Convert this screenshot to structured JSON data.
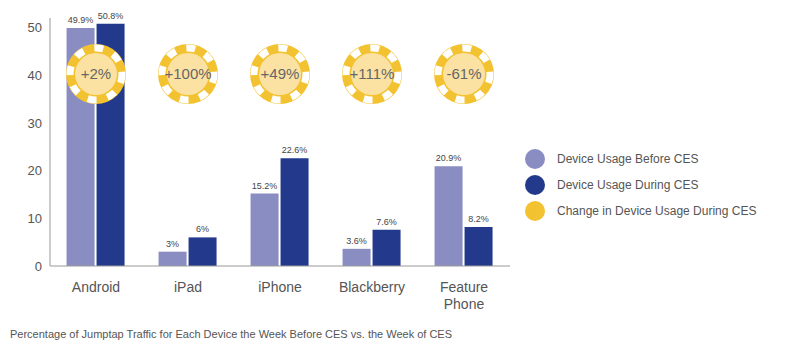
{
  "chart_data": {
    "type": "bar",
    "caption": "Percentage of Jumptap Traffic for Each Device the Week Before CES vs. the Week of CES",
    "categories": [
      "Android",
      "iPad",
      "iPhone",
      "Blackberry",
      "Feature Phone"
    ],
    "series": [
      {
        "name": "Device Usage Before CES",
        "color": "#8a8dc2",
        "values": [
          49.9,
          3,
          15.2,
          3.6,
          20.9
        ],
        "value_labels": [
          "49.9%",
          "3%",
          "15.2%",
          "3.6%",
          "20.9%"
        ]
      },
      {
        "name": "Device Usage During CES",
        "color": "#233a8c",
        "values": [
          50.8,
          6,
          22.6,
          7.6,
          8.2
        ],
        "value_labels": [
          "50.8%",
          "6%",
          "22.6%",
          "7.6%",
          "8.2%"
        ]
      }
    ],
    "change": {
      "name": "Change in Device Usage During CES",
      "color": "#f3c230",
      "values": [
        2,
        100,
        49,
        111,
        -61
      ],
      "value_labels": [
        "+2%",
        "+100%",
        "+49%",
        "+111%",
        "-61%"
      ]
    },
    "ylim": [
      0,
      52
    ],
    "yticks": [
      0,
      10,
      20,
      30,
      40,
      50
    ],
    "grid": false,
    "data_labels": true,
    "legend": "right"
  }
}
